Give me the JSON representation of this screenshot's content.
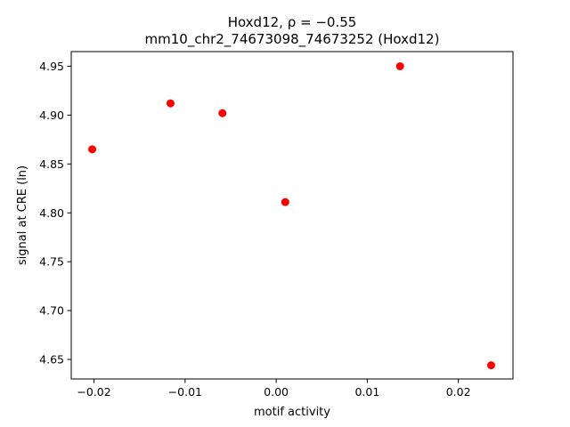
{
  "chart_data": {
    "type": "scatter",
    "title_line1": "Hoxd12, ρ = −0.55",
    "title_line2": "mm10_chr2_74673098_74673252 (Hoxd12)",
    "xlabel": "motif activity",
    "ylabel": "signal at CRE (ln)",
    "xlim": [
      -0.0225,
      0.026
    ],
    "ylim": [
      4.63,
      4.965
    ],
    "x_ticks": [
      -0.02,
      -0.01,
      0.0,
      0.01,
      0.02
    ],
    "x_tick_labels": [
      "−0.02",
      "−0.01",
      "0.00",
      "0.01",
      "0.02"
    ],
    "y_ticks": [
      4.65,
      4.7,
      4.75,
      4.8,
      4.85,
      4.9,
      4.95
    ],
    "y_tick_labels": [
      "4.65",
      "4.70",
      "4.75",
      "4.80",
      "4.85",
      "4.90",
      "4.95"
    ],
    "marker_color": "#ff0000",
    "grid": false,
    "points": [
      {
        "x": -0.0202,
        "y": 4.865
      },
      {
        "x": -0.0116,
        "y": 4.912
      },
      {
        "x": -0.0059,
        "y": 4.902
      },
      {
        "x": 0.001,
        "y": 4.811
      },
      {
        "x": 0.0136,
        "y": 4.95
      },
      {
        "x": 0.0236,
        "y": 4.644
      }
    ]
  }
}
